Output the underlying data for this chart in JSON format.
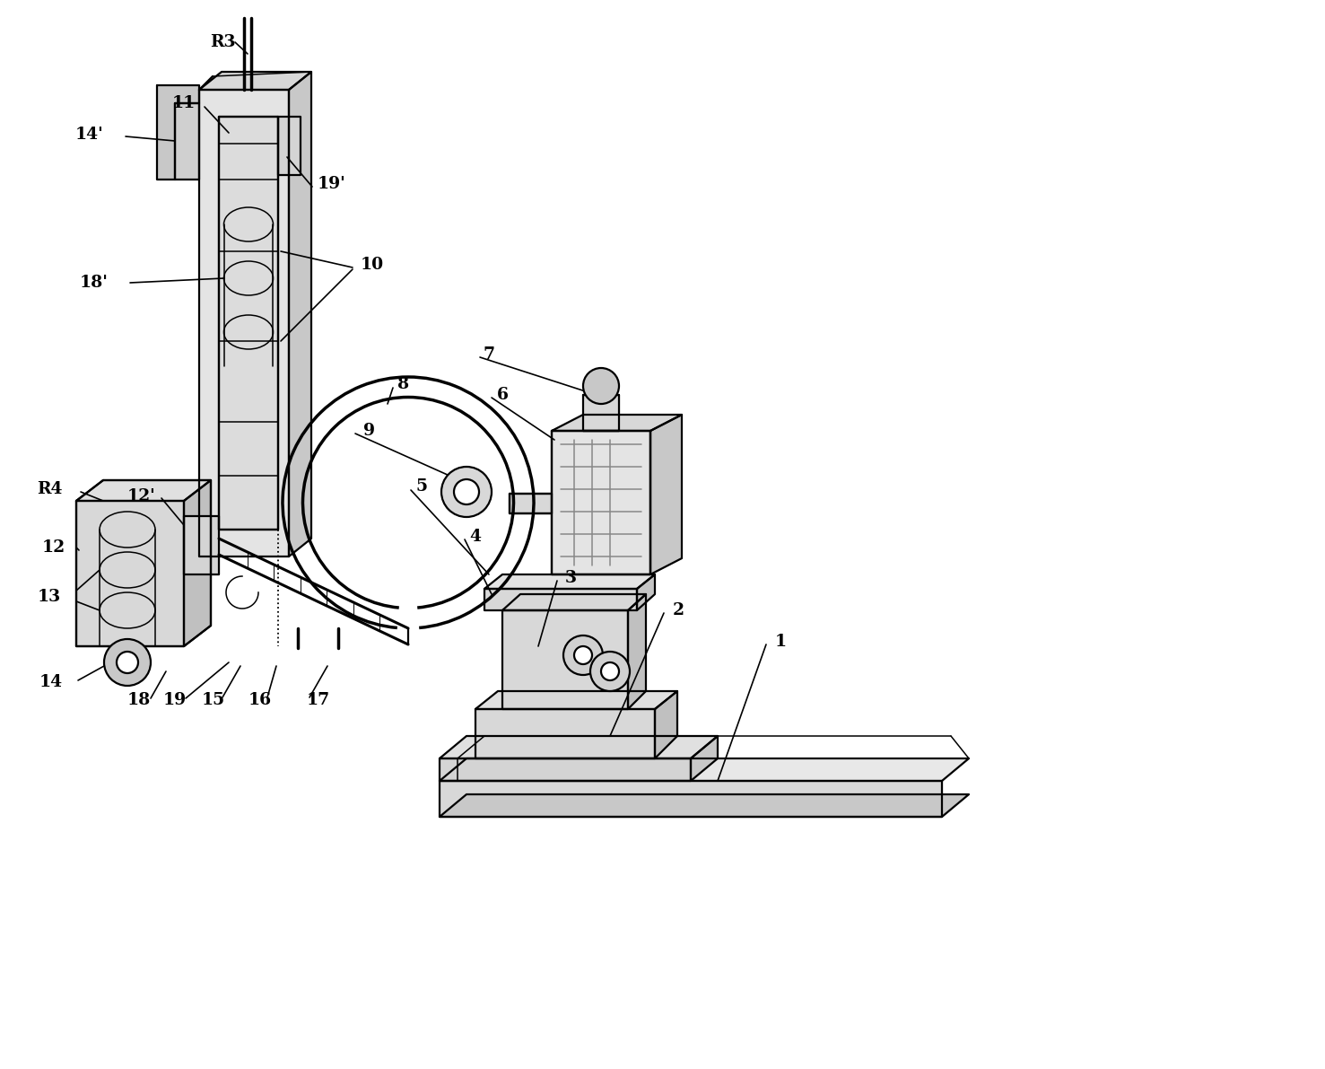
{
  "figure_width": 14.77,
  "figure_height": 11.91,
  "dpi": 100,
  "bg_color": "#ffffff",
  "line_color": "#000000",
  "label_fontsize": 13.5,
  "lw_main": 1.6,
  "lw_detail": 1.1,
  "gray1": "#e8e8e8",
  "gray2": "#d8d8d8",
  "gray3": "#c8c8c8",
  "gray4": "#b8b8b8"
}
